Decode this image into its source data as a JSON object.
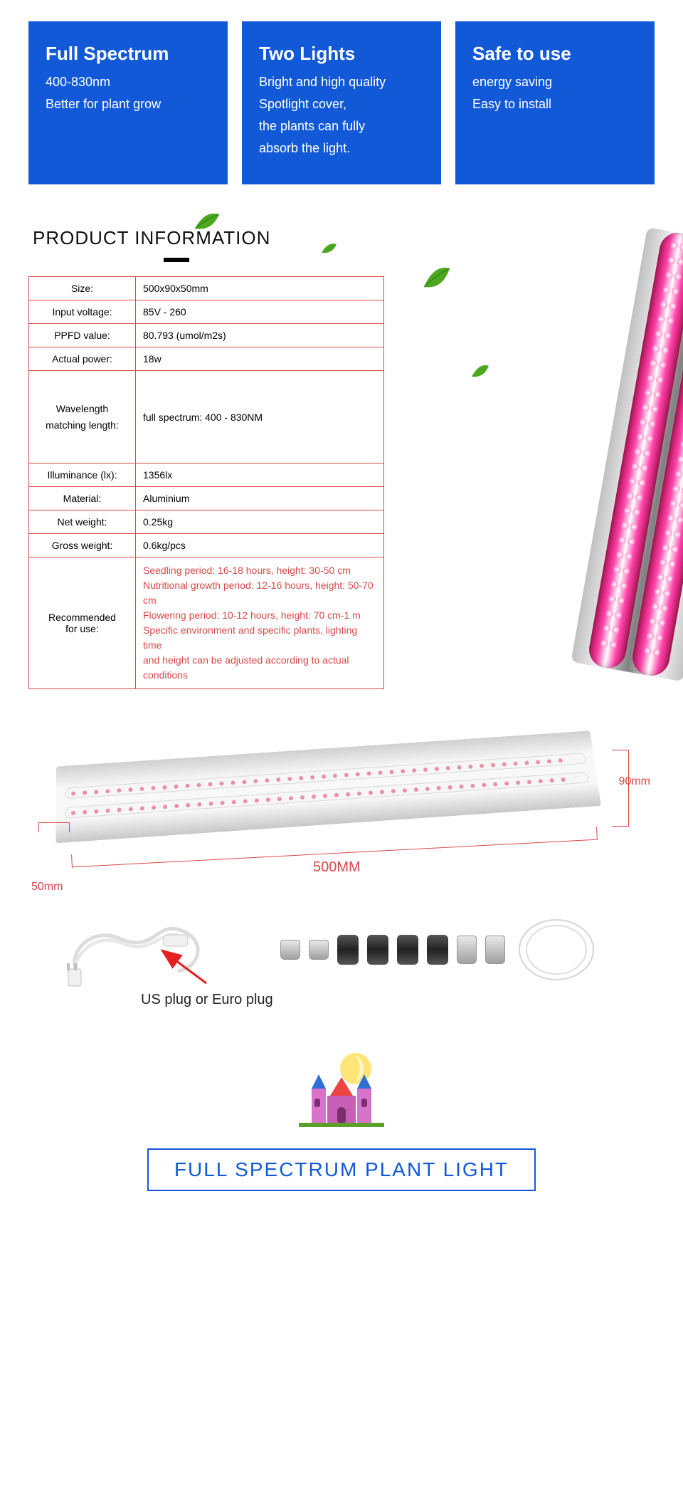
{
  "colors": {
    "feature_bg": "#1259d8",
    "feature_text": "#ffffff",
    "table_border": "#d94848",
    "rec_text": "#d94848",
    "dim_red": "#d94848",
    "banner_border": "#1259d8",
    "banner_text": "#1259d8",
    "leaf_green": "#4aa71f",
    "tube_pink": "#ff3fa8",
    "strip_dot": "#e88fa8"
  },
  "features": [
    {
      "title": "Full Spectrum",
      "lines": [
        "400-830nm",
        "Better for plant grow"
      ]
    },
    {
      "title": "Two Lights",
      "lines": [
        "Bright and high quality",
        "Spotlight cover,",
        "the plants can fully",
        "absorb the light."
      ]
    },
    {
      "title": "Safe to use",
      "lines": [
        "energy saving",
        "Easy to install"
      ]
    }
  ],
  "product_info_heading": "PRODUCT INFORMATION",
  "specs": [
    {
      "label": "Size:",
      "value": "500x90x50mm"
    },
    {
      "label": "Input voltage:",
      "value": "85V - 260"
    },
    {
      "label": "PPFD value:",
      "value": "80.793 (umol/m2s)"
    },
    {
      "label": "Actual power:",
      "value": "18w"
    },
    {
      "label": "Wavelength matching length:",
      "value": "full spectrum: 400 - 830NM",
      "tall": true
    },
    {
      "label": "Illuminance (lx):",
      "value": "1356lx"
    },
    {
      "label": "Material:",
      "value": "Aluminium"
    },
    {
      "label": "Net weight:",
      "value": "0.25kg"
    },
    {
      "label": "Gross weight:",
      "value": "0.6kg/pcs"
    }
  ],
  "recommended": {
    "label": "Recommended for use:",
    "lines": [
      "Seedling period: 16-18 hours, height: 30-50 cm",
      "Nutritional growth period: 12-16 hours, height: 50-70 cm",
      "Flowering period: 10-12 hours, height: 70 cm-1 m",
      "Specific environment and specific plants, lighting time",
      "and height can be adjusted according to actual conditions"
    ]
  },
  "dimensions": {
    "length": "500MM",
    "width": "90mm",
    "height": "50mm"
  },
  "plug_note": "US plug or Euro plug",
  "banner_title": "FULL SPECTRUM PLANT LIGHT"
}
